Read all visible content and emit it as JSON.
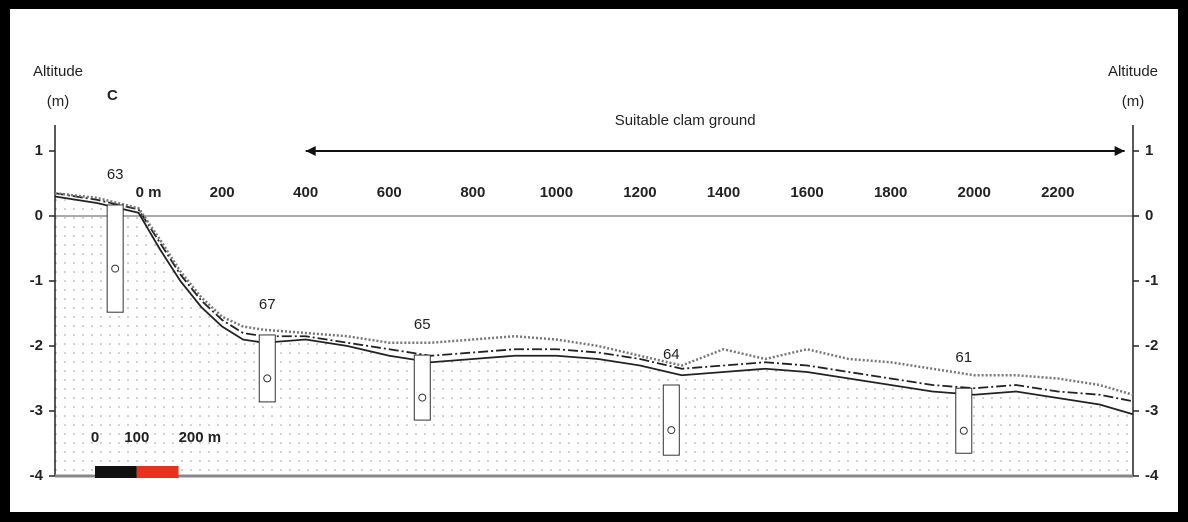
{
  "chart_data": {
    "type": "profile",
    "panel": "C",
    "ylabel": [
      "Altitude",
      "(m)"
    ],
    "y2label": [
      "Altitude",
      "(m)"
    ],
    "xlim": [
      -200,
      2380
    ],
    "xticks": [
      {
        "value": 0,
        "label": "0 m"
      },
      200,
      400,
      600,
      800,
      1000,
      1200,
      1400,
      1600,
      1800,
      2000,
      2200
    ],
    "ylim": [
      -4,
      1.4
    ],
    "yticks": [
      1,
      0,
      -1,
      -2,
      -3,
      -4
    ],
    "y2lim": [
      -4,
      1.4
    ],
    "y2ticks": [
      1,
      0,
      -1,
      -2,
      -3,
      -4
    ],
    "x": [
      -200,
      -100,
      0,
      50,
      100,
      150,
      200,
      250,
      300,
      400,
      500,
      600,
      700,
      800,
      900,
      1000,
      1100,
      1200,
      1300,
      1400,
      1500,
      1600,
      1700,
      1800,
      1900,
      2000,
      2100,
      2200,
      2300,
      2380
    ],
    "series": [
      {
        "style": "solid",
        "color": "#222222",
        "values": [
          0.3,
          0.2,
          0.05,
          -0.5,
          -1.0,
          -1.4,
          -1.7,
          -1.9,
          -1.95,
          -1.9,
          -2.0,
          -2.15,
          -2.25,
          -2.2,
          -2.15,
          -2.15,
          -2.2,
          -2.3,
          -2.45,
          -2.4,
          -2.35,
          -2.4,
          -2.5,
          -2.6,
          -2.7,
          -2.75,
          -2.7,
          -2.8,
          -2.9,
          -3.05
        ]
      },
      {
        "style": "dashdot",
        "color": "#222222",
        "values": [
          0.35,
          0.25,
          0.1,
          -0.4,
          -0.9,
          -1.3,
          -1.6,
          -1.8,
          -1.85,
          -1.85,
          -1.95,
          -2.05,
          -2.15,
          -2.1,
          -2.05,
          -2.05,
          -2.1,
          -2.2,
          -2.35,
          -2.3,
          -2.25,
          -2.3,
          -2.4,
          -2.5,
          -2.6,
          -2.65,
          -2.6,
          -2.7,
          -2.75,
          -2.85
        ]
      },
      {
        "style": "dotted",
        "color": "#777777",
        "values": [
          0.35,
          0.28,
          0.12,
          -0.35,
          -0.85,
          -1.25,
          -1.55,
          -1.7,
          -1.75,
          -1.8,
          -1.85,
          -1.95,
          -1.95,
          -1.9,
          -1.85,
          -1.9,
          -2.0,
          -2.15,
          -2.3,
          -2.05,
          -2.2,
          -2.05,
          -2.2,
          -2.25,
          -2.35,
          -2.45,
          -2.45,
          -2.5,
          -2.6,
          -2.75
        ]
      }
    ],
    "stations": [
      {
        "label": "63",
        "x": -56,
        "top": 0.17,
        "bottom": -1.48
      },
      {
        "label": "67",
        "x": 308,
        "top": -1.83,
        "bottom": -2.86
      },
      {
        "label": "65",
        "x": 679,
        "top": -2.14,
        "bottom": -3.14
      },
      {
        "label": "64",
        "x": 1275,
        "top": -2.6,
        "bottom": -3.68
      },
      {
        "label": "61",
        "x": 1975,
        "top": -2.65,
        "bottom": -3.65
      }
    ],
    "annotation": {
      "text": "Suitable clam ground",
      "x": [
        400,
        2360
      ],
      "y": 1
    },
    "scalebar": {
      "ticks": [
        0,
        100,
        {
          "value": 200,
          "label": "200 m"
        }
      ],
      "colors": [
        "#111111",
        "#e8321e"
      ]
    }
  }
}
